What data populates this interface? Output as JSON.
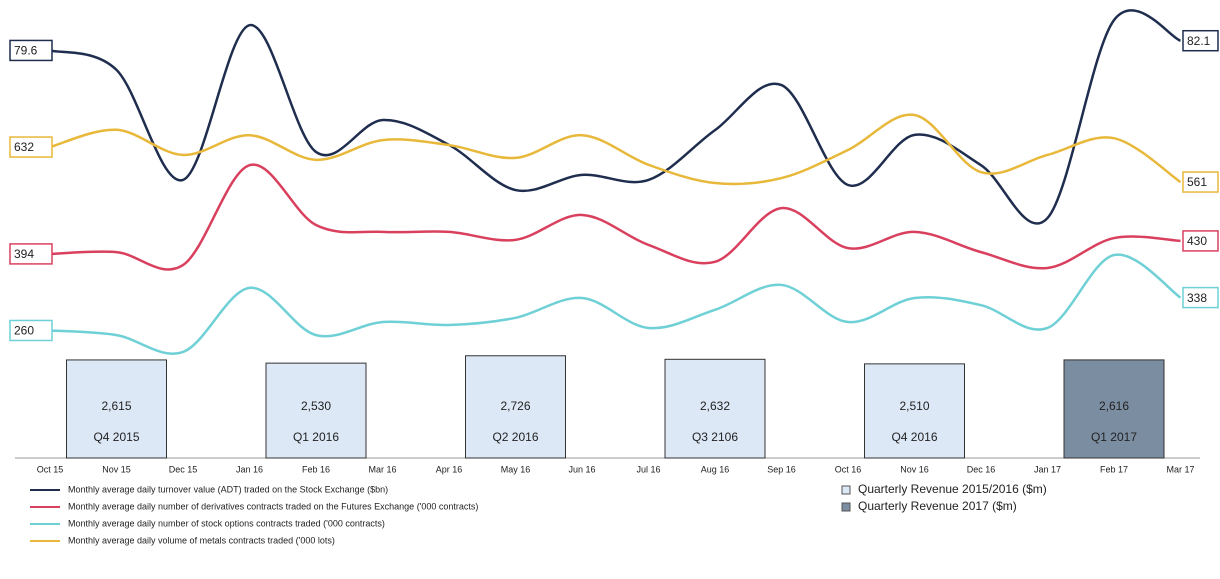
{
  "chart_data": [
    {
      "type": "line",
      "categories": [
        "Oct 15",
        "Nov 15",
        "Dec 15",
        "Jan 16",
        "Feb 16",
        "Mar 16",
        "Apr 16",
        "May 16",
        "Jun 16",
        "Jul 16",
        "Aug 16",
        "Sep 16",
        "Oct 16",
        "Nov 16",
        "Dec 16",
        "Jan 17",
        "Feb 17",
        "Mar 17"
      ],
      "series": [
        {
          "name": "Monthly average daily turnover value (ADT) traded on the Stock Exchange ($bn)",
          "color": "#1f2d4e",
          "ylim": [
            0,
            90
          ],
          "values": [
            79.6,
            74.6,
            46.3,
            86.1,
            53.5,
            61.7,
            55.3,
            43.7,
            47.6,
            46.3,
            59.1,
            70.7,
            45.0,
            57.9,
            50.1,
            36.5,
            87.4,
            82.1
          ]
        },
        {
          "name": "Monthly average daily number of derivatives contracts traded on the Futures Exchange ('000 contracts)",
          "color": "#d9405e",
          "ylim": [
            100,
            1070
          ],
          "values": [
            394,
            399,
            363,
            640,
            474,
            455,
            455,
            433,
            502,
            419,
            372,
            521,
            410,
            455,
            399,
            355,
            438,
            430
          ]
        },
        {
          "name": "Monthly average daily number of stock options contracts traded ('000 contracts)",
          "color": "#6fd0d6",
          "ylim": [
            190,
            1020
          ],
          "values": [
            260,
            249,
            209,
            361,
            249,
            280,
            273,
            290,
            337,
            266,
            309,
            368,
            280,
            337,
            320,
            266,
            439,
            338
          ]
        },
        {
          "name": "Monthly average daily volume of metals contracts traded ('000 lots)",
          "color": "#e8b83a",
          "ylim": [
            200,
            910
          ],
          "values": [
            632,
            667,
            616,
            656,
            606,
            646,
            636,
            610,
            656,
            596,
            559,
            569,
            626,
            697,
            581,
            616,
            650,
            561
          ]
        }
      ]
    },
    {
      "type": "bar",
      "ylim": [
        0,
        2800
      ],
      "series": [
        {
          "name": "Quarterly Revenue 2015/2016 ($m)",
          "color": "#dce8f6",
          "categories": [
            "Q4 2015",
            "Q1 2016",
            "Q2 2016",
            "Q3 2106",
            "Q4 2016"
          ],
          "values": [
            2615,
            2530,
            2726,
            2632,
            2510
          ],
          "value_labels": [
            "2,615",
            "2,530",
            "2,726",
            "2,632",
            "2,510"
          ]
        },
        {
          "name": "Quarterly Revenue 2017 ($m)",
          "color": "#7b8da1",
          "categories": [
            "Q1 2017"
          ],
          "values": [
            2616
          ],
          "value_labels": [
            "2,616"
          ]
        }
      ]
    }
  ]
}
